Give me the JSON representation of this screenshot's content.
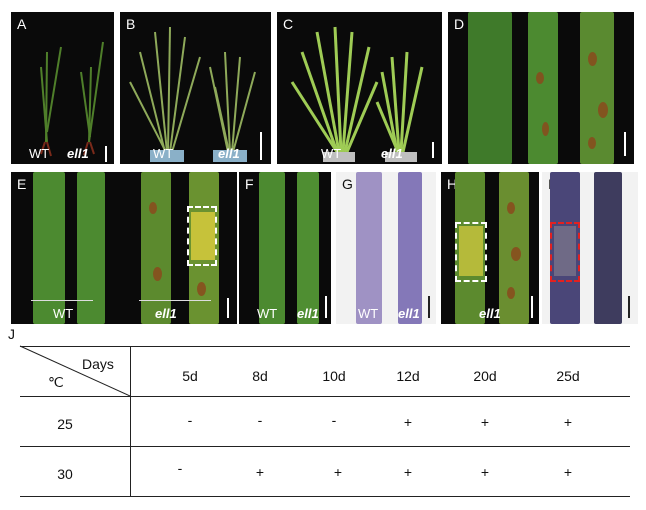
{
  "figure": {
    "panels": [
      {
        "label": "A",
        "captions": [
          "WT",
          "ell1"
        ]
      },
      {
        "label": "B",
        "captions": [
          "WT",
          "ell1"
        ]
      },
      {
        "label": "C",
        "captions": [
          "WT",
          "ell1"
        ]
      },
      {
        "label": "D",
        "captions": []
      },
      {
        "label": "E",
        "captions": [
          "WT",
          "ell1"
        ]
      },
      {
        "label": "F",
        "captions": [
          "WT",
          "ell1"
        ]
      },
      {
        "label": "G",
        "captions": [
          "WT",
          "ell1"
        ]
      },
      {
        "label": "H",
        "captions": [
          "ell1"
        ]
      },
      {
        "label": "I",
        "captions": []
      }
    ]
  },
  "table": {
    "label": "J",
    "corner_top": "Days",
    "corner_bottom": "℃",
    "columns": [
      "5d",
      "8d",
      "10d",
      "12d",
      "20d",
      "25d"
    ],
    "rows": [
      {
        "temp": "25",
        "values": [
          "-",
          "-",
          "-",
          "+",
          "+",
          "+"
        ]
      },
      {
        "temp": "30",
        "values": [
          "-",
          "+",
          "+",
          "+",
          "+",
          "+"
        ]
      }
    ]
  }
}
